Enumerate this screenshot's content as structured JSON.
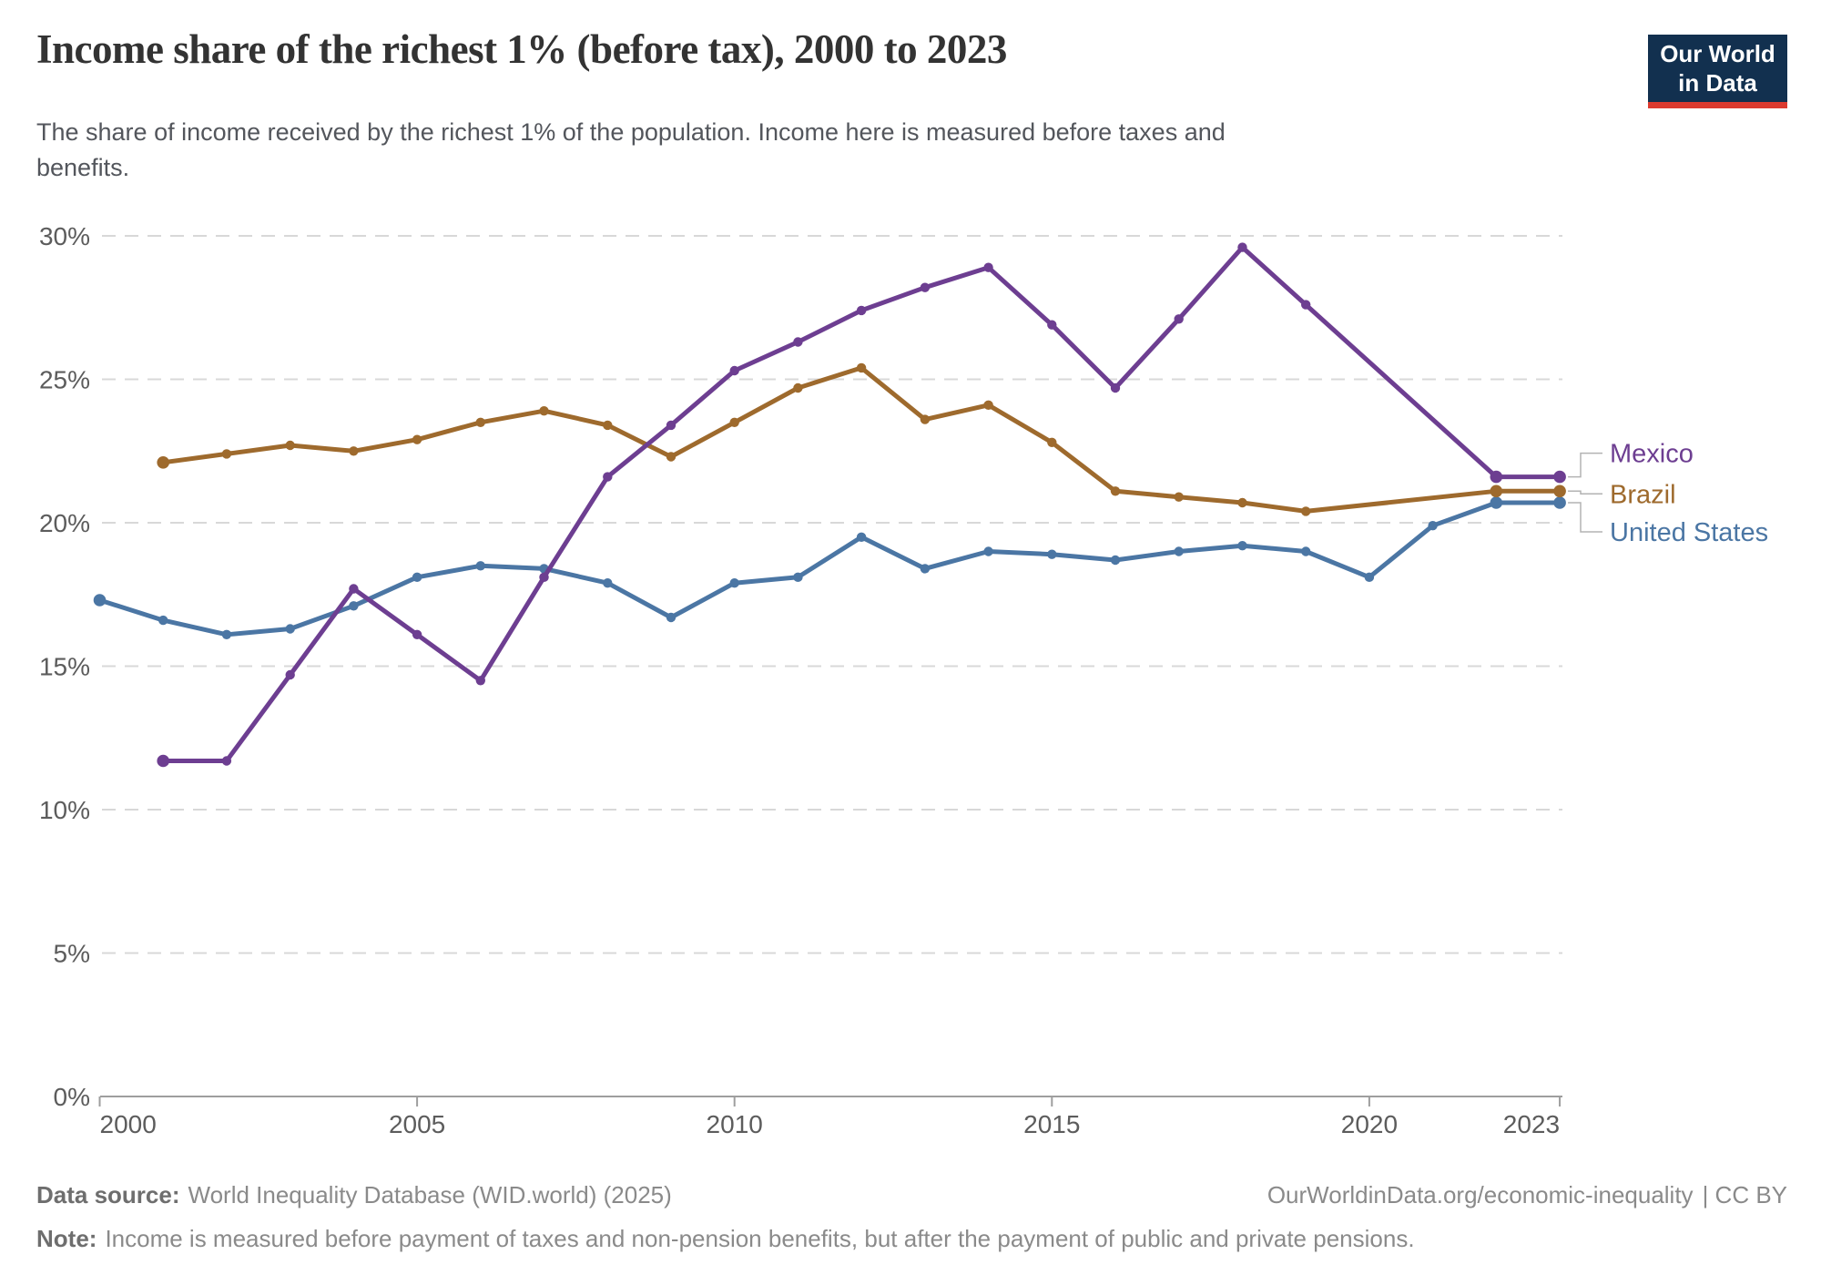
{
  "header": {
    "title": "Income share of the richest 1% (before tax), 2000 to 2023",
    "subtitle_line1": "The share of income received by the richest 1% of the population. Income here is measured before taxes and",
    "subtitle_line2": "benefits.",
    "logo": {
      "line1": "Our World",
      "line2": "in Data"
    }
  },
  "footer": {
    "datasource_label": "Data source:",
    "datasource_text": "World Inequality Database (WID.world) (2025)",
    "note_label": "Note:",
    "note_text": "Income is measured before payment of taxes and non-pension benefits, but after the payment of public and private pensions.",
    "link_text": "OurWorldinData.org/economic-inequality",
    "license_text": "| CC BY"
  },
  "colors": {
    "logo_navy": "#12304f",
    "logo_red": "#dc3a2f",
    "grid": "#d8d8d8",
    "axis": "#9e9e9e",
    "tick_text": "#5c5c5c",
    "connector": "#b3b3b3"
  },
  "chart_data": {
    "type": "line",
    "title": "Income share of the richest 1% (before tax), 2000 to 2023",
    "subtitle": "The share of income received by the richest 1% of the population. Income here is measured before taxes and benefits.",
    "xlabel": "",
    "ylabel": "",
    "x_ticks": [
      2000,
      2005,
      2010,
      2015,
      2020,
      2023
    ],
    "y_ticks": [
      0,
      5,
      10,
      15,
      20,
      25,
      30
    ],
    "y_tick_suffix": "%",
    "x_range": [
      2000,
      2023
    ],
    "y_range": [
      0,
      30
    ],
    "grid": "horizontal-dashed",
    "legend_position": "right-of-line-ends",
    "series": [
      {
        "name": "Mexico",
        "color": "#6d3e91",
        "points": [
          [
            2001,
            11.7
          ],
          [
            2002,
            11.7
          ],
          [
            2003,
            14.7
          ],
          [
            2004,
            17.7
          ],
          [
            2005,
            16.1
          ],
          [
            2006,
            14.5
          ],
          [
            2007,
            18.1
          ],
          [
            2008,
            21.6
          ],
          [
            2009,
            23.4
          ],
          [
            2010,
            25.3
          ],
          [
            2011,
            26.3
          ],
          [
            2012,
            27.4
          ],
          [
            2013,
            28.2
          ],
          [
            2014,
            28.9
          ],
          [
            2015,
            26.9
          ],
          [
            2016,
            24.7
          ],
          [
            2017,
            27.1
          ],
          [
            2018,
            29.6
          ],
          [
            2019,
            27.6
          ],
          [
            2022,
            21.6
          ],
          [
            2023,
            21.6
          ]
        ]
      },
      {
        "name": "Brazil",
        "color": "#9e6a2d",
        "points": [
          [
            2001,
            22.1
          ],
          [
            2002,
            22.4
          ],
          [
            2003,
            22.7
          ],
          [
            2004,
            22.5
          ],
          [
            2005,
            22.9
          ],
          [
            2006,
            23.5
          ],
          [
            2007,
            23.9
          ],
          [
            2008,
            23.4
          ],
          [
            2009,
            22.3
          ],
          [
            2010,
            23.5
          ],
          [
            2011,
            24.7
          ],
          [
            2012,
            25.4
          ],
          [
            2013,
            23.6
          ],
          [
            2014,
            24.1
          ],
          [
            2015,
            22.8
          ],
          [
            2016,
            21.1
          ],
          [
            2017,
            20.9
          ],
          [
            2018,
            20.7
          ],
          [
            2019,
            20.4
          ],
          [
            2022,
            21.1
          ],
          [
            2023,
            21.1
          ]
        ]
      },
      {
        "name": "United States",
        "color": "#4b76a4",
        "points": [
          [
            2000,
            17.3
          ],
          [
            2001,
            16.6
          ],
          [
            2002,
            16.1
          ],
          [
            2003,
            16.3
          ],
          [
            2004,
            17.1
          ],
          [
            2005,
            18.1
          ],
          [
            2006,
            18.5
          ],
          [
            2007,
            18.4
          ],
          [
            2008,
            17.9
          ],
          [
            2009,
            16.7
          ],
          [
            2010,
            17.9
          ],
          [
            2011,
            18.1
          ],
          [
            2012,
            19.5
          ],
          [
            2013,
            18.4
          ],
          [
            2014,
            19.0
          ],
          [
            2015,
            18.9
          ],
          [
            2016,
            18.7
          ],
          [
            2017,
            19.0
          ],
          [
            2018,
            19.2
          ],
          [
            2019,
            19.0
          ],
          [
            2020,
            18.1
          ],
          [
            2021,
            19.9
          ],
          [
            2022,
            20.7
          ],
          [
            2023,
            20.7
          ]
        ]
      }
    ]
  }
}
